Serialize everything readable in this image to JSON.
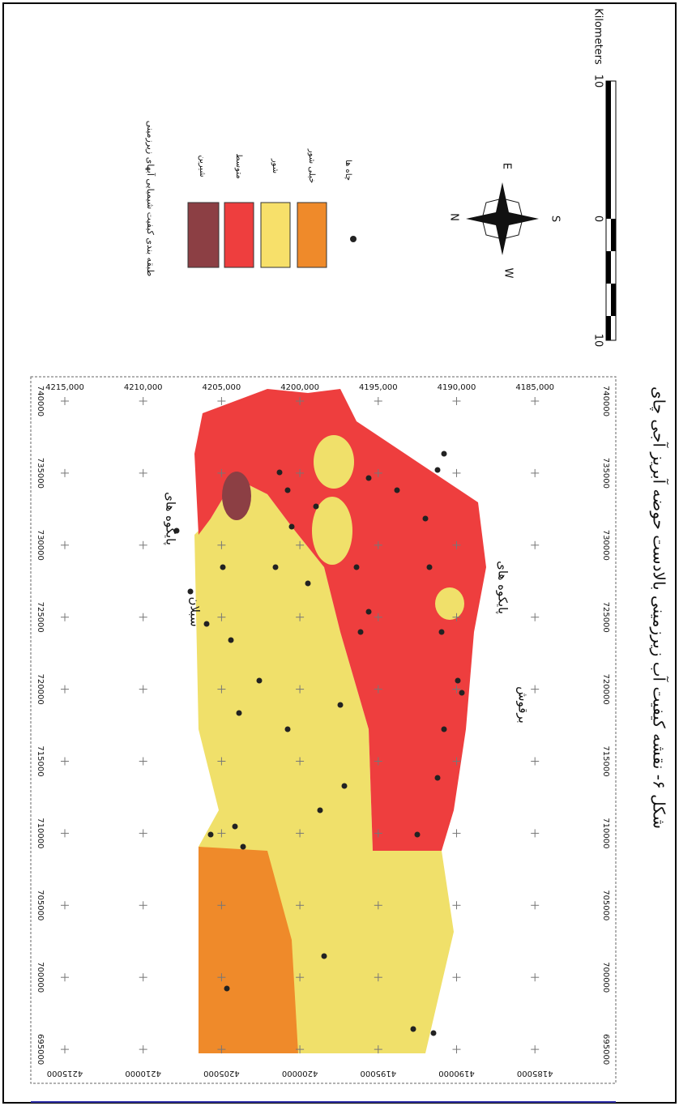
{
  "caption": "شکل ۶- نقشه کیفیت آب زیرزمینی بالادست حوضه آبریز آجی چای",
  "legend": {
    "title": "طبقه بندی کیفیت شیمیایی آبهای زیرزمینی",
    "items": [
      "شیرین",
      "متوسط",
      "شور",
      "خیلی شور"
    ],
    "wells": "چاه ها"
  },
  "scale_bar": {
    "labels": [
      "10",
      "0",
      "10"
    ],
    "unit": "Kilometers"
  },
  "compass": [
    "N",
    "E",
    "S",
    "W"
  ],
  "map": {
    "northing_labels_top": [
      "4215,000",
      "4210,000",
      "4205,000",
      "4200,000",
      "4195,000",
      "4190,000",
      "4185,000"
    ],
    "northing_labels_bottom": [
      "4215000",
      "4210000",
      "4205000",
      "4200000",
      "4195000",
      "4190000",
      "4185000"
    ],
    "easting_labels_left": [
      "740000",
      "735000",
      "730000",
      "725000",
      "720000",
      "715000",
      "710000",
      "705000",
      "700000",
      "695000"
    ],
    "easting_labels_right": [
      "740000",
      "735000",
      "730000",
      "725000",
      "720000",
      "715000",
      "710000",
      "705000",
      "700000",
      "695000"
    ],
    "place_labels": [
      "پایکوه های",
      "سبلان",
      "پایکوه های",
      "برقوش"
    ]
  }
}
